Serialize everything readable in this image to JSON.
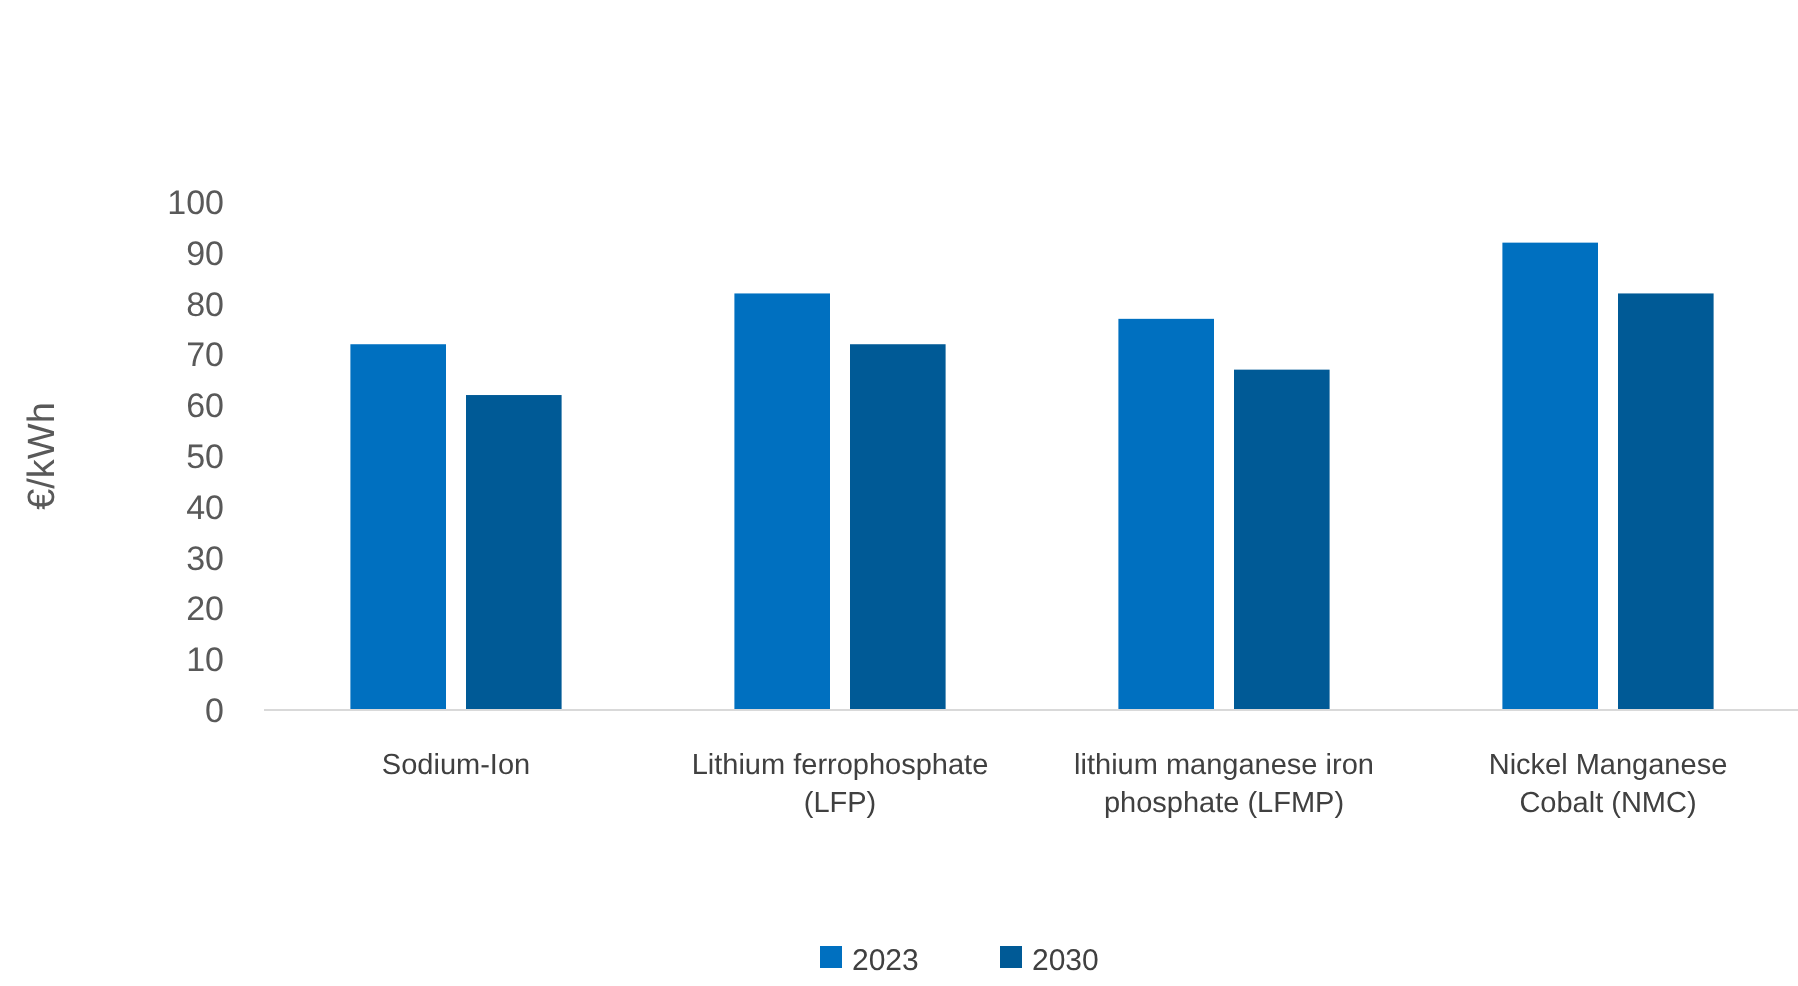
{
  "chart_data": {
    "type": "bar",
    "ylabel": "€/kWh",
    "categories": [
      "Sodium-Ion",
      "Lithium ferrophosphate (LFP)",
      "lithium manganese iron phosphate (LFMP)",
      "Nickel Manganese Cobalt (NMC)"
    ],
    "series": [
      {
        "name": "2023",
        "color": "#0070c0",
        "values": [
          72,
          82,
          77,
          92
        ]
      },
      {
        "name": "2030",
        "color": "#005a96",
        "values": [
          62,
          72,
          67,
          82
        ]
      }
    ],
    "ylim": [
      0,
      100
    ],
    "yticks": [
      0,
      10,
      20,
      30,
      40,
      50,
      60,
      70,
      80,
      90,
      100
    ],
    "grid": false,
    "legend": "bottom"
  }
}
